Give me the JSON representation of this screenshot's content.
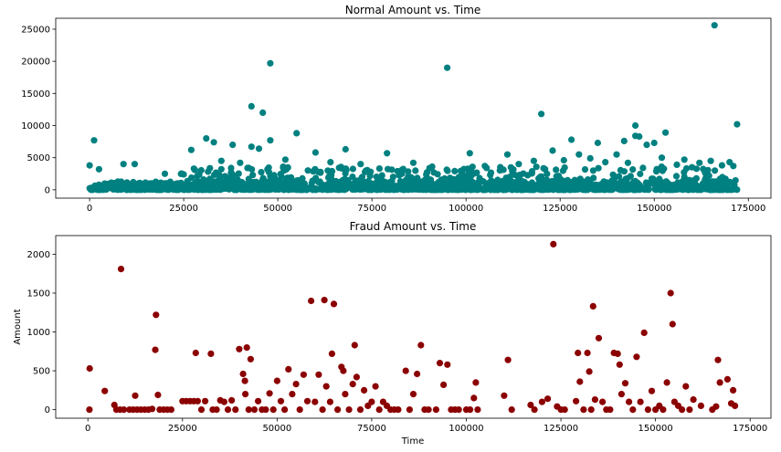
{
  "chart_data": [
    {
      "type": "scatter",
      "title": "Normal Amount vs. Time",
      "xlabel": "",
      "ylabel": "",
      "xlim": [
        -9000,
        181000
      ],
      "ylim": [
        -1300,
        26700
      ],
      "xticks": [
        0,
        25000,
        50000,
        75000,
        100000,
        125000,
        150000,
        175000
      ],
      "xtick_labels": [
        "0",
        "25000",
        "50000",
        "75000",
        "100000",
        "125000",
        "150000",
        "175000"
      ],
      "yticks": [
        0,
        5000,
        10000,
        15000,
        20000,
        25000
      ],
      "ytick_labels": [
        "0",
        "5000",
        "10000",
        "15000",
        "20000",
        "25000"
      ],
      "color": "#008080",
      "band": {
        "x_range": [
          0,
          172000
        ],
        "y_range": [
          0,
          1300
        ],
        "note": "dense cloud of points near zero"
      },
      "points": [
        [
          1200,
          7700
        ],
        [
          166000,
          25600
        ],
        [
          48000,
          19700
        ],
        [
          95000,
          19000
        ],
        [
          43000,
          13000
        ],
        [
          46000,
          12000
        ],
        [
          120000,
          11800
        ],
        [
          172000,
          10200
        ],
        [
          145000,
          10000
        ],
        [
          145000,
          8400
        ],
        [
          146000,
          8300
        ],
        [
          153000,
          8900
        ],
        [
          55000,
          8800
        ],
        [
          31000,
          8000
        ],
        [
          33000,
          7400
        ],
        [
          128000,
          7800
        ],
        [
          142000,
          7600
        ],
        [
          148000,
          7000
        ],
        [
          150000,
          7300
        ],
        [
          135000,
          7300
        ],
        [
          43000,
          6700
        ],
        [
          38000,
          7000
        ],
        [
          48000,
          7700
        ],
        [
          45000,
          6400
        ],
        [
          27000,
          6200
        ],
        [
          68000,
          6300
        ],
        [
          60000,
          5800
        ],
        [
          79000,
          5700
        ],
        [
          101000,
          5700
        ],
        [
          111000,
          5500
        ],
        [
          123000,
          6100
        ],
        [
          130000,
          5500
        ],
        [
          140000,
          5500
        ],
        [
          152000,
          5000
        ],
        [
          158000,
          4700
        ],
        [
          162000,
          4200
        ],
        [
          165000,
          4500
        ],
        [
          170000,
          4300
        ],
        [
          0,
          3800
        ],
        [
          9000,
          4000
        ],
        [
          12000,
          4000
        ],
        [
          2500,
          3200
        ],
        [
          35000,
          4500
        ],
        [
          40000,
          4200
        ],
        [
          52000,
          4700
        ],
        [
          64000,
          4300
        ],
        [
          72000,
          4000
        ],
        [
          86000,
          4200
        ],
        [
          91000,
          3600
        ],
        [
          105000,
          3700
        ],
        [
          114000,
          4000
        ],
        [
          118000,
          4500
        ],
        [
          126000,
          4600
        ],
        [
          133000,
          4900
        ],
        [
          137000,
          4300
        ],
        [
          143000,
          4200
        ],
        [
          156000,
          3900
        ],
        [
          160000,
          3500
        ],
        [
          168000,
          3800
        ],
        [
          171000,
          3700
        ],
        [
          20000,
          2500
        ],
        [
          25000,
          2400
        ],
        [
          58000,
          3000
        ],
        [
          77000,
          3300
        ],
        [
          83000,
          3100
        ],
        [
          97000,
          2900
        ],
        [
          109000,
          3000
        ],
        [
          121000,
          3200
        ],
        [
          147000,
          3400
        ],
        [
          99000,
          2600
        ]
      ]
    },
    {
      "type": "scatter",
      "title": "Fraud Amount vs. Time",
      "xlabel": "Time",
      "ylabel": "Amount",
      "xlim": [
        -8500,
        180500
      ],
      "ylim": [
        -110,
        2240
      ],
      "xticks": [
        0,
        25000,
        50000,
        75000,
        100000,
        125000,
        150000,
        175000
      ],
      "xtick_labels": [
        "0",
        "25000",
        "50000",
        "75000",
        "100000",
        "125000",
        "150000",
        "175000"
      ],
      "yticks": [
        0,
        500,
        1000,
        1500,
        2000
      ],
      "ytick_labels": [
        "0",
        "500",
        "1000",
        "1500",
        "2000"
      ],
      "color": "#8b0000",
      "points": [
        [
          406,
          0
        ],
        [
          472,
          530
        ],
        [
          4462,
          240
        ],
        [
          6986,
          60
        ],
        [
          7519,
          0
        ],
        [
          8500,
          0
        ],
        [
          8757,
          1810
        ],
        [
          9500,
          0
        ],
        [
          11000,
          0
        ],
        [
          12000,
          0
        ],
        [
          12500,
          180
        ],
        [
          13000,
          0
        ],
        [
          14000,
          0
        ],
        [
          15000,
          0
        ],
        [
          16000,
          0
        ],
        [
          17000,
          10
        ],
        [
          17800,
          770
        ],
        [
          18000,
          1220
        ],
        [
          18500,
          190
        ],
        [
          19000,
          0
        ],
        [
          20000,
          0
        ],
        [
          21000,
          0
        ],
        [
          22000,
          0
        ],
        [
          25000,
          110
        ],
        [
          26000,
          110
        ],
        [
          27000,
          110
        ],
        [
          28000,
          110
        ],
        [
          28500,
          730
        ],
        [
          29000,
          110
        ],
        [
          30000,
          0
        ],
        [
          31000,
          110
        ],
        [
          32500,
          720
        ],
        [
          33000,
          0
        ],
        [
          34000,
          0
        ],
        [
          35000,
          120
        ],
        [
          36000,
          100
        ],
        [
          37000,
          0
        ],
        [
          38000,
          120
        ],
        [
          39000,
          0
        ],
        [
          40000,
          780
        ],
        [
          41000,
          460
        ],
        [
          41500,
          370
        ],
        [
          41600,
          200
        ],
        [
          42000,
          800
        ],
        [
          42500,
          0
        ],
        [
          43000,
          650
        ],
        [
          44000,
          0
        ],
        [
          45000,
          110
        ],
        [
          46000,
          0
        ],
        [
          47000,
          0
        ],
        [
          48000,
          210
        ],
        [
          49000,
          0
        ],
        [
          50000,
          370
        ],
        [
          51000,
          110
        ],
        [
          52000,
          0
        ],
        [
          53000,
          520
        ],
        [
          54000,
          200
        ],
        [
          55000,
          330
        ],
        [
          56000,
          0
        ],
        [
          57000,
          450
        ],
        [
          58000,
          110
        ],
        [
          59000,
          1400
        ],
        [
          60000,
          100
        ],
        [
          61000,
          450
        ],
        [
          62000,
          0
        ],
        [
          62500,
          1410
        ],
        [
          63000,
          300
        ],
        [
          64000,
          100
        ],
        [
          64500,
          720
        ],
        [
          65000,
          1360
        ],
        [
          66000,
          0
        ],
        [
          67000,
          550
        ],
        [
          67500,
          500
        ],
        [
          68000,
          200
        ],
        [
          69000,
          0
        ],
        [
          70000,
          330
        ],
        [
          70500,
          830
        ],
        [
          71000,
          420
        ],
        [
          72000,
          0
        ],
        [
          73000,
          250
        ],
        [
          74000,
          50
        ],
        [
          75000,
          100
        ],
        [
          76000,
          300
        ],
        [
          77000,
          0
        ],
        [
          78000,
          100
        ],
        [
          79000,
          50
        ],
        [
          80000,
          0
        ],
        [
          81000,
          0
        ],
        [
          82000,
          0
        ],
        [
          84000,
          500
        ],
        [
          85000,
          0
        ],
        [
          86000,
          200
        ],
        [
          87000,
          460
        ],
        [
          88000,
          830
        ],
        [
          89000,
          0
        ],
        [
          90000,
          0
        ],
        [
          92000,
          0
        ],
        [
          93000,
          600
        ],
        [
          94000,
          320
        ],
        [
          95000,
          580
        ],
        [
          96000,
          0
        ],
        [
          97000,
          0
        ],
        [
          98000,
          0
        ],
        [
          100000,
          0
        ],
        [
          101000,
          0
        ],
        [
          102000,
          150
        ],
        [
          102500,
          350
        ],
        [
          103000,
          0
        ],
        [
          110000,
          180
        ],
        [
          111000,
          640
        ],
        [
          112000,
          0
        ],
        [
          117000,
          60
        ],
        [
          118000,
          0
        ],
        [
          120000,
          100
        ],
        [
          121500,
          140
        ],
        [
          123000,
          2130
        ],
        [
          124000,
          40
        ],
        [
          125000,
          0
        ],
        [
          126000,
          0
        ],
        [
          129000,
          110
        ],
        [
          129500,
          730
        ],
        [
          130000,
          360
        ],
        [
          131000,
          0
        ],
        [
          132000,
          730
        ],
        [
          132500,
          490
        ],
        [
          133000,
          0
        ],
        [
          133500,
          1330
        ],
        [
          134000,
          130
        ],
        [
          135000,
          920
        ],
        [
          136000,
          100
        ],
        [
          137000,
          0
        ],
        [
          138000,
          0
        ],
        [
          139000,
          730
        ],
        [
          140000,
          720
        ],
        [
          140500,
          580
        ],
        [
          141000,
          200
        ],
        [
          142000,
          340
        ],
        [
          143000,
          100
        ],
        [
          144000,
          0
        ],
        [
          145000,
          680
        ],
        [
          146000,
          100
        ],
        [
          147000,
          990
        ],
        [
          148000,
          0
        ],
        [
          149000,
          240
        ],
        [
          150000,
          0
        ],
        [
          151000,
          50
        ],
        [
          152000,
          0
        ],
        [
          153000,
          350
        ],
        [
          154000,
          1500
        ],
        [
          154500,
          1100
        ],
        [
          155000,
          100
        ],
        [
          156000,
          50
        ],
        [
          157000,
          0
        ],
        [
          158000,
          300
        ],
        [
          159000,
          0
        ],
        [
          160000,
          130
        ],
        [
          162000,
          50
        ],
        [
          165000,
          0
        ],
        [
          166000,
          40
        ],
        [
          166500,
          640
        ],
        [
          167000,
          350
        ],
        [
          169000,
          390
        ],
        [
          170000,
          80
        ],
        [
          170500,
          250
        ],
        [
          171000,
          50
        ]
      ]
    }
  ]
}
